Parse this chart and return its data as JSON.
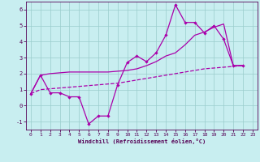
{
  "xlabel": "Windchill (Refroidissement éolien,°C)",
  "bg_color": "#c8eef0",
  "line_color": "#aa00aa",
  "grid_color": "#99cccc",
  "xlim": [
    -0.5,
    23.5
  ],
  "ylim": [
    -1.5,
    6.5
  ],
  "yticks": [
    -1,
    0,
    1,
    2,
    3,
    4,
    5,
    6
  ],
  "xticks": [
    0,
    1,
    2,
    3,
    4,
    5,
    6,
    7,
    8,
    9,
    10,
    11,
    12,
    13,
    14,
    15,
    16,
    17,
    18,
    19,
    20,
    21,
    22,
    23
  ],
  "series1_x": [
    0,
    1,
    2,
    3,
    4,
    5,
    6,
    7,
    8,
    9,
    10,
    11,
    12,
    13,
    14,
    15,
    16,
    17,
    18,
    19,
    20,
    21,
    22
  ],
  "series1_y": [
    0.75,
    1.9,
    0.8,
    0.8,
    0.55,
    0.55,
    -1.15,
    -0.65,
    -0.65,
    1.3,
    2.7,
    3.1,
    2.75,
    3.3,
    4.4,
    6.3,
    5.2,
    5.2,
    4.55,
    5.0,
    4.15,
    2.5,
    2.5
  ],
  "series2_x": [
    0,
    1,
    2,
    3,
    4,
    5,
    6,
    7,
    8,
    9,
    10,
    11,
    12,
    13,
    14,
    15,
    16,
    17,
    18,
    19,
    20,
    21,
    22
  ],
  "series2_y": [
    0.75,
    1.0,
    1.05,
    1.1,
    1.15,
    1.2,
    1.25,
    1.3,
    1.35,
    1.4,
    1.5,
    1.6,
    1.7,
    1.8,
    1.9,
    2.0,
    2.1,
    2.2,
    2.3,
    2.35,
    2.4,
    2.45,
    2.5
  ],
  "series3_x": [
    0,
    1,
    2,
    3,
    4,
    5,
    6,
    7,
    8,
    9,
    10,
    11,
    12,
    13,
    14,
    15,
    16,
    17,
    18,
    19,
    20,
    21,
    22
  ],
  "series3_y": [
    0.75,
    1.9,
    2.0,
    2.05,
    2.1,
    2.1,
    2.1,
    2.1,
    2.1,
    2.15,
    2.2,
    2.3,
    2.5,
    2.75,
    3.1,
    3.3,
    3.8,
    4.4,
    4.6,
    4.9,
    5.1,
    2.5,
    2.5
  ]
}
